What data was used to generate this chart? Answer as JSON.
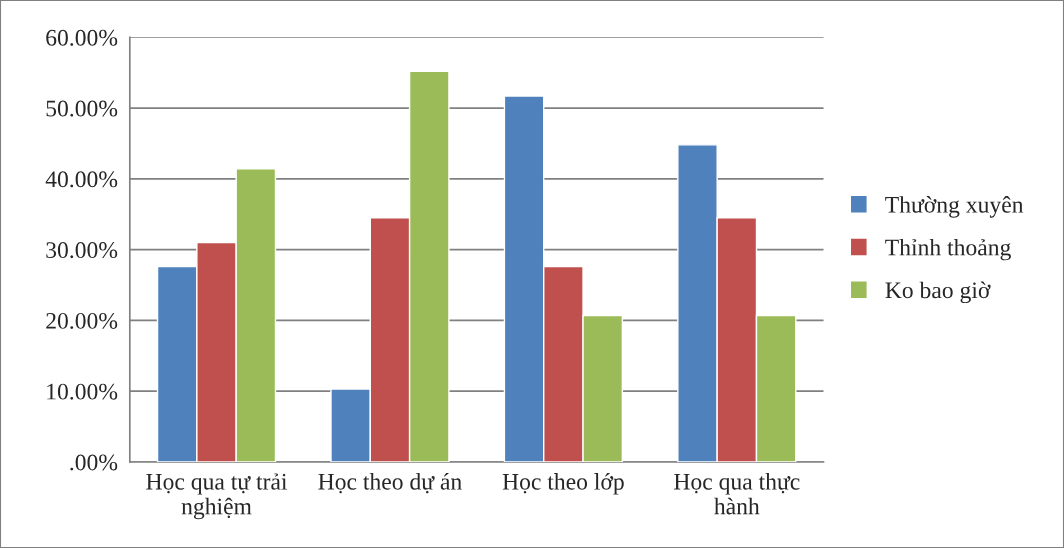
{
  "chart_data": {
    "type": "bar",
    "categories": [
      "Học qua tự trải\nnghiệm",
      "Học theo dự án",
      "Học theo lớp",
      "Học qua thực\nhành"
    ],
    "series": [
      {
        "name": "Thường xuyên",
        "color": "#4f81bd",
        "values": [
          27.6,
          10.3,
          51.7,
          44.8
        ]
      },
      {
        "name": "Thỉnh thoảng",
        "color": "#c0504d",
        "values": [
          31.0,
          34.5,
          27.6,
          34.5
        ]
      },
      {
        "name": "Ko bao giờ",
        "color": "#9bbb59",
        "values": [
          41.4,
          55.2,
          20.7,
          20.7
        ]
      }
    ],
    "ylim": [
      0,
      60
    ],
    "yticks": [
      {
        "value": 0,
        "label": ".00%"
      },
      {
        "value": 10,
        "label": "10.00%"
      },
      {
        "value": 20,
        "label": "20.00%"
      },
      {
        "value": 30,
        "label": "30.00%"
      },
      {
        "value": 40,
        "label": "40.00%"
      },
      {
        "value": 50,
        "label": "50.00%"
      },
      {
        "value": 60,
        "label": "60.00%"
      }
    ],
    "grid": "y",
    "legend": "right"
  }
}
